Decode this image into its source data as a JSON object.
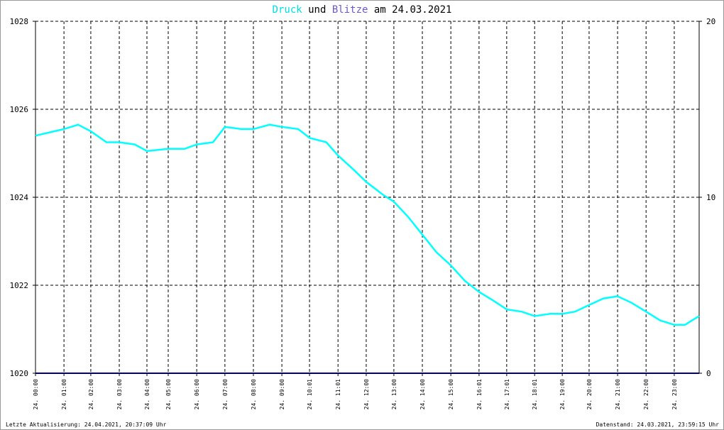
{
  "chart_data": {
    "type": "line",
    "title_parts": [
      "Druck",
      "und",
      "Blitze",
      "am 24.03.2021"
    ],
    "footer_left": "Letzte Aktualisierung: 24.04.2021, 20:37:09 Uhr",
    "footer_right": "Datenstand: 24.03.2021, 23:59:15 Uhr",
    "x": [
      0,
      1.03,
      1.54,
      2.0,
      2.57,
      3.03,
      3.59,
      4.03,
      4.8,
      5.39,
      5.83,
      6.42,
      6.85,
      7.44,
      7.88,
      8.47,
      8.91,
      9.5,
      9.91,
      10.52,
      10.94,
      11.55,
      11.96,
      12.58,
      12.96,
      13.48,
      13.99,
      14.5,
      15.02,
      15.53,
      16.04,
      16.56,
      17.04,
      17.58,
      18.05,
      18.61,
      19.05,
      19.51,
      20.02,
      20.54,
      21.05,
      21.56,
      22.08,
      22.59,
      23.1,
      23.49,
      23.74,
      24
    ],
    "series": [
      {
        "name": "Druck",
        "color": "#00ffff",
        "values": [
          1025.4,
          1025.55,
          1025.65,
          1025.5,
          1025.25,
          1025.25,
          1025.2,
          1025.05,
          1025.1,
          1025.1,
          1025.2,
          1025.25,
          1025.6,
          1025.55,
          1025.55,
          1025.65,
          1025.6,
          1025.55,
          1025.35,
          1025.25,
          1024.95,
          1024.6,
          1024.35,
          1024.05,
          1023.9,
          1023.55,
          1023.15,
          1022.75,
          1022.45,
          1022.1,
          1021.85,
          1021.65,
          1021.45,
          1021.4,
          1021.3,
          1021.35,
          1021.35,
          1021.4,
          1021.55,
          1021.7,
          1021.75,
          1021.6,
          1021.4,
          1021.2,
          1021.1,
          1021.1,
          1021.2,
          1021.3
        ]
      },
      {
        "name": "Blitze",
        "color": "#000080",
        "axis": "y2",
        "values": [
          0,
          0,
          0,
          0,
          0,
          0,
          0,
          0,
          0,
          0,
          0,
          0,
          0,
          0,
          0,
          0,
          0,
          0,
          0,
          0,
          0,
          0,
          0,
          0,
          0,
          0,
          0,
          0,
          0,
          0,
          0,
          0,
          0,
          0,
          0,
          0,
          0,
          0,
          0,
          0,
          0,
          0,
          0,
          0,
          0,
          0,
          0,
          0
        ]
      }
    ],
    "xlim": [
      0,
      24
    ],
    "xticks": [
      {
        "value": 0,
        "label": "24. 00:00"
      },
      {
        "value": 1.03,
        "label": "24. 01:00"
      },
      {
        "value": 2.0,
        "label": "24. 02:00"
      },
      {
        "value": 3.03,
        "label": "24. 03:00"
      },
      {
        "value": 4.03,
        "label": "24. 04:00"
      },
      {
        "value": 4.8,
        "label": "24. 05:00"
      },
      {
        "value": 5.83,
        "label": "24. 06:00"
      },
      {
        "value": 6.85,
        "label": "24. 07:00"
      },
      {
        "value": 7.88,
        "label": "24. 08:00"
      },
      {
        "value": 8.91,
        "label": "24. 09:00"
      },
      {
        "value": 9.91,
        "label": "24. 10:01"
      },
      {
        "value": 10.94,
        "label": "24. 11:01"
      },
      {
        "value": 11.96,
        "label": "24. 12:00"
      },
      {
        "value": 12.96,
        "label": "24. 13:00"
      },
      {
        "value": 13.99,
        "label": "24. 14:00"
      },
      {
        "value": 15.02,
        "label": "24. 15:00"
      },
      {
        "value": 16.04,
        "label": "24. 16:01"
      },
      {
        "value": 17.04,
        "label": "24. 17:01"
      },
      {
        "value": 18.05,
        "label": "24. 18:01"
      },
      {
        "value": 19.05,
        "label": "24. 19:00"
      },
      {
        "value": 20.02,
        "label": "24. 20:00"
      },
      {
        "value": 21.05,
        "label": "24. 21:00"
      },
      {
        "value": 22.08,
        "label": "24. 22:00"
      },
      {
        "value": 23.1,
        "label": "24. 23:00"
      }
    ],
    "ylim": [
      1020,
      1028
    ],
    "yticks": [
      1020,
      1022,
      1024,
      1026,
      1028
    ],
    "y2lim": [
      0,
      20
    ],
    "y2ticks": [
      0,
      10,
      20
    ],
    "grid": true
  }
}
